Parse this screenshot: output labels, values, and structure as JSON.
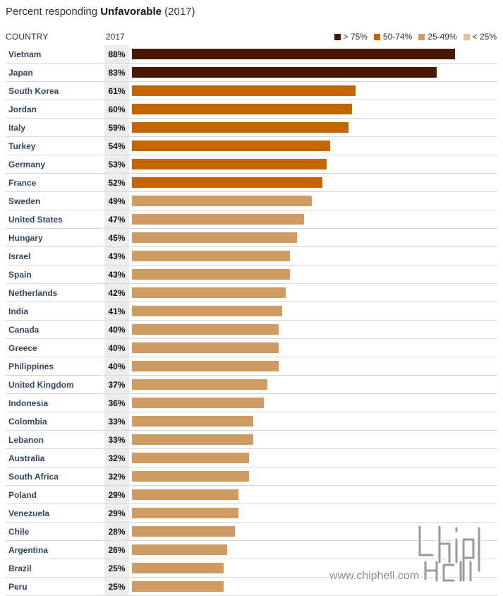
{
  "title_prefix": "Percent responding ",
  "title_bold": "Unfavorable",
  "title_suffix": " (2017)",
  "header": {
    "country": "COUNTRY",
    "year": "2017"
  },
  "legend": [
    {
      "label": "> 75%",
      "color": "#4a1800"
    },
    {
      "label": "50-74%",
      "color": "#c46500"
    },
    {
      "label": "25-49%",
      "color": "#d09a63"
    },
    {
      "label": "< 25%",
      "color": "#dcc39a"
    }
  ],
  "chart_data": {
    "type": "bar",
    "orientation": "horizontal",
    "title": "Percent responding Unfavorable (2017)",
    "xlim": [
      0,
      100
    ],
    "grid": false,
    "legend_position": "top-right",
    "categories": [
      "Vietnam",
      "Japan",
      "South Korea",
      "Jordan",
      "Italy",
      "Turkey",
      "Germany",
      "France",
      "Sweden",
      "United States",
      "Hungary",
      "Israel",
      "Spain",
      "Netherlands",
      "India",
      "Canada",
      "Greece",
      "Philippines",
      "United Kingdom",
      "Indonesia",
      "Colombia",
      "Lebanon",
      "Australia",
      "South Africa",
      "Poland",
      "Venezuela",
      "Chile",
      "Argentina",
      "Brazil",
      "Peru"
    ],
    "values": [
      88,
      83,
      61,
      60,
      59,
      54,
      53,
      52,
      49,
      47,
      45,
      43,
      43,
      42,
      41,
      40,
      40,
      40,
      37,
      36,
      33,
      33,
      32,
      32,
      29,
      29,
      28,
      26,
      25,
      25
    ],
    "value_labels": [
      "88%",
      "83%",
      "61%",
      "60%",
      "59%",
      "54%",
      "53%",
      "52%",
      "49%",
      "47%",
      "45%",
      "43%",
      "43%",
      "42%",
      "41%",
      "40%",
      "40%",
      "40%",
      "37%",
      "36%",
      "33%",
      "33%",
      "32%",
      "32%",
      "29%",
      "29%",
      "28%",
      "26%",
      "25%",
      "25%"
    ]
  },
  "watermark": {
    "text": "www.chiphell.com",
    "logo_text": "chip hell"
  }
}
